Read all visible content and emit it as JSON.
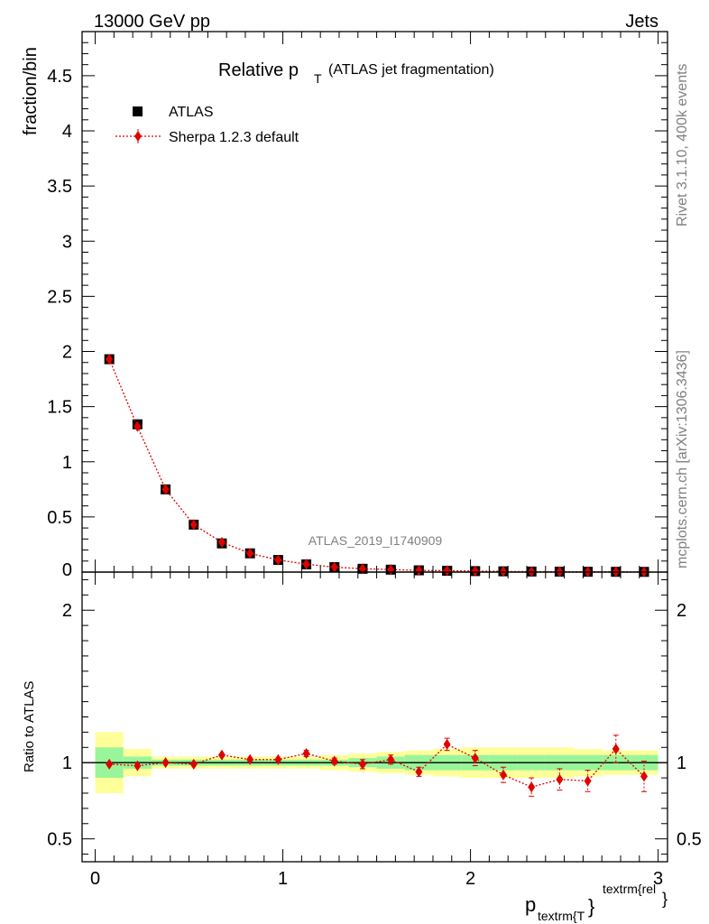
{
  "header": {
    "left": "13000 GeV pp",
    "right": "Jets"
  },
  "title": {
    "main": "Relative p",
    "sub": "T",
    "paren": "(ATLAS jet fragmentation)"
  },
  "side_text": {
    "rivet": "Rivet 3.1.10,  400k events",
    "mcplots": "mcplots.cern.ch [arXiv:1306.3436]"
  },
  "analysis_label": "ATLAS_2019_I1740909",
  "axes": {
    "upper_ylabel": "fraction/bin",
    "lower_ylabel": "Ratio to ATLAS",
    "xlabel_main": "p",
    "xlabel_sub": "textrm{T",
    "xlabel_sup": "textrm{rel",
    "xlabel_close": "}"
  },
  "legend": {
    "data_label": "ATLAS",
    "mc_label": "Sherpa 1.2.3 default"
  },
  "colors": {
    "mc": "#e00000",
    "band_inner": "#99f599",
    "band_outer": "#ffff99"
  },
  "chart_data": {
    "type": "scatter",
    "x_range": [
      -0.07,
      3.05
    ],
    "upper_ylim": [
      0,
      4.9
    ],
    "lower_ylim": [
      0.35,
      2.25
    ],
    "x_ticks": [
      0,
      1,
      2,
      3
    ],
    "x_tick_labels": [
      "0",
      "1",
      "2",
      "3"
    ],
    "upper_y_ticks": [
      0.5,
      1,
      1.5,
      2,
      2.5,
      3,
      3.5,
      4,
      4.5
    ],
    "upper_y_tick_labels": [
      "0.5",
      "1",
      "1.5",
      "2",
      "2.5",
      "3",
      "3.5",
      "4",
      "4.5"
    ],
    "upper_y_zero_label": "0",
    "lower_y_ticks": [
      0.5,
      1,
      2
    ],
    "lower_y_tick_labels": [
      "0.5",
      "1",
      "2"
    ],
    "bin_edges": [
      0,
      0.15,
      0.3,
      0.45,
      0.6,
      0.75,
      0.9,
      1.05,
      1.2,
      1.35,
      1.5,
      1.65,
      1.8,
      1.95,
      2.1,
      2.25,
      2.4,
      2.55,
      2.7,
      2.85,
      3.0
    ],
    "series": [
      {
        "name": "ATLAS",
        "x": [
          0.075,
          0.225,
          0.375,
          0.525,
          0.675,
          0.825,
          0.975,
          1.125,
          1.275,
          1.425,
          1.575,
          1.725,
          1.875,
          2.025,
          2.175,
          2.325,
          2.475,
          2.625,
          2.775,
          2.925
        ],
        "values": [
          1.93,
          1.34,
          0.75,
          0.43,
          0.26,
          0.17,
          0.11,
          0.07,
          0.045,
          0.03,
          0.022,
          0.016,
          0.012,
          0.009,
          0.007,
          0.005,
          0.004,
          0.003,
          0.0025,
          0.002
        ]
      },
      {
        "name": "Sherpa 1.2.3 default",
        "x": [
          0.075,
          0.225,
          0.375,
          0.525,
          0.675,
          0.825,
          0.975,
          1.125,
          1.275,
          1.425,
          1.575,
          1.725,
          1.875,
          2.025,
          2.175,
          2.325,
          2.475,
          2.625,
          2.775,
          2.925
        ],
        "values": [
          1.93,
          1.32,
          0.75,
          0.43,
          0.27,
          0.17,
          0.11,
          0.072,
          0.045,
          0.03,
          0.023,
          0.015,
          0.013,
          0.009,
          0.006,
          0.0042,
          0.0036,
          0.0027,
          0.0027,
          0.0018
        ]
      }
    ],
    "ratio": {
      "values": [
        0.99,
        0.98,
        1.0,
        0.99,
        1.05,
        1.02,
        1.02,
        1.06,
        1.01,
        0.99,
        1.02,
        0.94,
        1.12,
        1.03,
        0.92,
        0.84,
        0.89,
        0.88,
        1.09,
        0.91
      ],
      "errors": [
        0.01,
        0.01,
        0.01,
        0.01,
        0.01,
        0.01,
        0.01,
        0.02,
        0.02,
        0.03,
        0.03,
        0.03,
        0.04,
        0.05,
        0.05,
        0.06,
        0.07,
        0.07,
        0.09,
        0.1
      ],
      "band_inner": [
        0.1,
        0.04,
        0.02,
        0.02,
        0.02,
        0.02,
        0.02,
        0.02,
        0.02,
        0.03,
        0.04,
        0.05,
        0.05,
        0.05,
        0.05,
        0.05,
        0.05,
        0.05,
        0.05,
        0.05
      ],
      "band_outer": [
        0.2,
        0.09,
        0.04,
        0.04,
        0.04,
        0.04,
        0.04,
        0.04,
        0.05,
        0.06,
        0.07,
        0.08,
        0.09,
        0.1,
        0.1,
        0.1,
        0.1,
        0.09,
        0.08,
        0.08
      ]
    }
  }
}
